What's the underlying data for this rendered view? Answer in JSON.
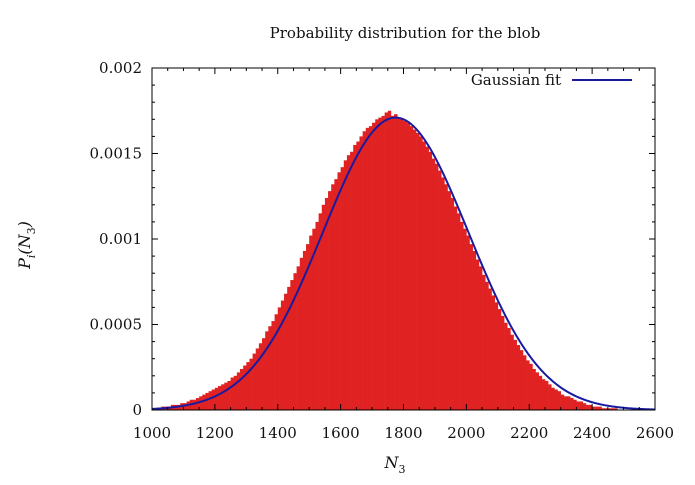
{
  "chart_data": {
    "type": "bar",
    "title": "Probability distribution for the blob",
    "xlabel_main": "N",
    "xlabel_sub": "3",
    "ylabel_main": "P",
    "ylabel_sub_i": "i",
    "ylabel_open": "(N",
    "ylabel_sub_3": "3",
    "ylabel_close": ")",
    "xlim": [
      1000,
      2600
    ],
    "ylim": [
      0,
      0.002
    ],
    "x_ticks": [
      1000,
      1200,
      1400,
      1600,
      1800,
      2000,
      2200,
      2400,
      2600
    ],
    "x_tick_labels": [
      "1000",
      "1200",
      "1400",
      "1600",
      "1800",
      "2000",
      "2200",
      "2400",
      "2600"
    ],
    "y_ticks": [
      0,
      0.0005,
      0.001,
      0.0015,
      0.002
    ],
    "y_tick_labels": [
      "0",
      "0.0005",
      "0.001",
      "0.0015",
      "0.002"
    ],
    "histogram": {
      "name": "histogram",
      "color": "#e02222",
      "bin_width": 10,
      "x_start": 1000,
      "values": [
        1e-05,
        1e-05,
        1e-05,
        2e-05,
        2e-05,
        2e-05,
        3e-05,
        3e-05,
        3e-05,
        4e-05,
        4e-05,
        5e-05,
        6e-05,
        6e-05,
        7e-05,
        8e-05,
        9e-05,
        0.0001,
        0.00011,
        0.00012,
        0.00013,
        0.00014,
        0.00015,
        0.00016,
        0.00017,
        0.00019,
        0.0002,
        0.00022,
        0.00024,
        0.00026,
        0.00028,
        0.0003,
        0.00033,
        0.00036,
        0.00039,
        0.00042,
        0.00046,
        0.00049,
        0.00052,
        0.00056,
        0.0006,
        0.00064,
        0.00068,
        0.00072,
        0.00076,
        0.0008,
        0.00084,
        0.00089,
        0.00093,
        0.00097,
        0.00102,
        0.00106,
        0.0011,
        0.00115,
        0.0012,
        0.00124,
        0.00128,
        0.00132,
        0.00135,
        0.00139,
        0.00142,
        0.00146,
        0.00149,
        0.00151,
        0.00155,
        0.00157,
        0.0016,
        0.00163,
        0.00165,
        0.00166,
        0.00168,
        0.0017,
        0.00171,
        0.00172,
        0.00174,
        0.00175,
        0.00172,
        0.00173,
        0.00171,
        0.0017,
        0.00169,
        0.00168,
        0.00166,
        0.00164,
        0.00162,
        0.0016,
        0.00157,
        0.00154,
        0.00151,
        0.00147,
        0.00144,
        0.0014,
        0.00136,
        0.00132,
        0.00128,
        0.00124,
        0.00119,
        0.00115,
        0.0011,
        0.00106,
        0.00102,
        0.00097,
        0.00093,
        0.00088,
        0.00084,
        0.00079,
        0.00075,
        0.00071,
        0.00067,
        0.00063,
        0.00059,
        0.00055,
        0.00051,
        0.00048,
        0.00044,
        0.00041,
        0.00038,
        0.00035,
        0.00032,
        0.00029,
        0.00027,
        0.00024,
        0.00022,
        0.0002,
        0.00018,
        0.00017,
        0.00015,
        0.00013,
        0.00012,
        0.00011,
        9e-05,
        8e-05,
        8e-05,
        7e-05,
        6e-05,
        5e-05,
        5e-05,
        4e-05,
        3e-05,
        3e-05,
        2e-05,
        2e-05,
        2e-05,
        1e-05,
        1e-05,
        1e-05,
        1e-05,
        1e-05,
        0.0,
        0.0,
        0.0,
        0.0,
        0.0,
        0.0,
        0.0,
        0.0,
        0.0,
        0.0,
        0.0,
        0.0
      ]
    },
    "fit": {
      "name": "Gaussian fit",
      "color": "#1a1aa0",
      "mean": 1775,
      "sigma": 232,
      "peak": 0.00171
    },
    "legend_position": "top-right",
    "grid": false
  }
}
